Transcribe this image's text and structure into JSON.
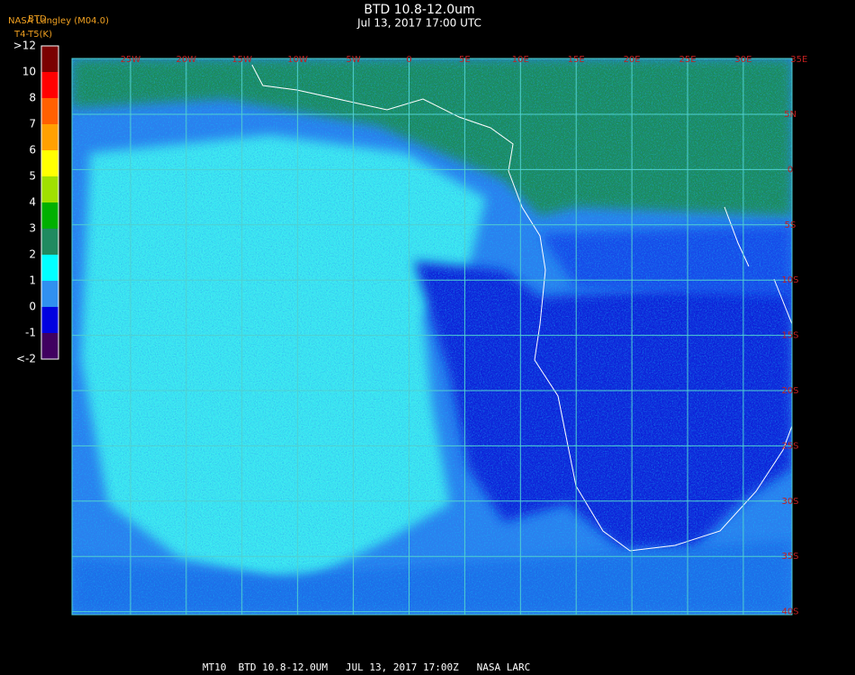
{
  "header": {
    "title": "BTD 10.8-12.0um",
    "subtitle": "Jul 13, 2017 17:00 UTC",
    "source": "NASA Langley (M04.0)",
    "product": "BTD",
    "units": "T4-T5(K)"
  },
  "colorbar": {
    "labels": [
      ">12",
      "10",
      "8",
      "7",
      "6",
      "5",
      "4",
      "3",
      "2",
      "1",
      "0",
      "-1",
      "<-2"
    ],
    "colors": [
      "#7a0000",
      "#ff0000",
      "#ff6000",
      "#ffa000",
      "#ffff00",
      "#a0e000",
      "#00b000",
      "#208a60",
      "#00ffff",
      "#3090f0",
      "#0000e0",
      "#400060"
    ]
  },
  "longitude_labels": [
    "25W",
    "20W",
    "15W",
    "10W",
    "5W",
    "0",
    "5E",
    "10E",
    "15E",
    "20E",
    "25E",
    "30E",
    "35E"
  ],
  "latitude_labels": [
    "5N",
    "0",
    "5S",
    "10S",
    "15S",
    "20S",
    "25S",
    "30S",
    "35S",
    "40S"
  ],
  "footer": "MT10  BTD 10.8-12.0UM   JUL 13, 2017 17:00Z   NASA LARC"
}
